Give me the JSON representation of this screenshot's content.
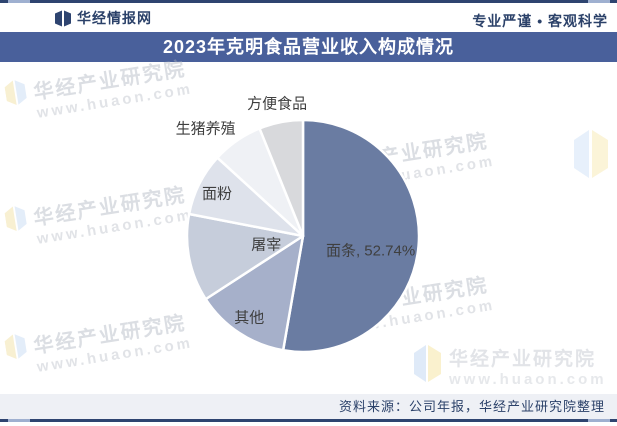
{
  "header": {
    "brand": "华经情报网",
    "slogan": "专业严谨 • 客观科学"
  },
  "title": "2023年克明食品营业收入构成情况",
  "chart_data": {
    "type": "pie",
    "title": "2023年克明食品营业收入构成情况",
    "unit": "%",
    "direction": "clockwise",
    "start_angle_deg": 0,
    "legend": "none",
    "note": "只有“面条”扇区显示百分比数值，其余扇区数值按扇形角度估算",
    "slices": [
      {
        "label": "面条",
        "value": 52.74,
        "value_shown": true,
        "data_label": "面条, 52.74%",
        "color": "#6A7CA2"
      },
      {
        "label": "其他",
        "value": 13.1,
        "value_shown": false,
        "data_label": "其他",
        "color": "#A6B0CA"
      },
      {
        "label": "屠宰",
        "value": 12.2,
        "value_shown": false,
        "data_label": "屠宰",
        "color": "#C6CDDB"
      },
      {
        "label": "面粉",
        "value": 8.75,
        "value_shown": false,
        "data_label": "面粉",
        "color": "#DEE2EB"
      },
      {
        "label": "生猪养殖",
        "value": 7.1,
        "value_shown": false,
        "data_label": "生猪养殖",
        "color": "#EFF1F5"
      },
      {
        "label": "方便食品",
        "value": 6.11,
        "value_shown": false,
        "data_label": "方便食品",
        "color": "#D8D9DC"
      }
    ]
  },
  "watermark": {
    "name": "华经产业研究院",
    "url": "www.huaon.com"
  },
  "footer": {
    "source": "资料来源：公司年报，华经产业研究院整理"
  },
  "colors": {
    "accent_dark": "#2E4470",
    "title_bar_bg": "#49609B",
    "footer_bg": "#EEF0F5",
    "header_text": "#2B4169",
    "label_text": "#3F3F3F",
    "slice_gap": "#FFFFFF"
  }
}
